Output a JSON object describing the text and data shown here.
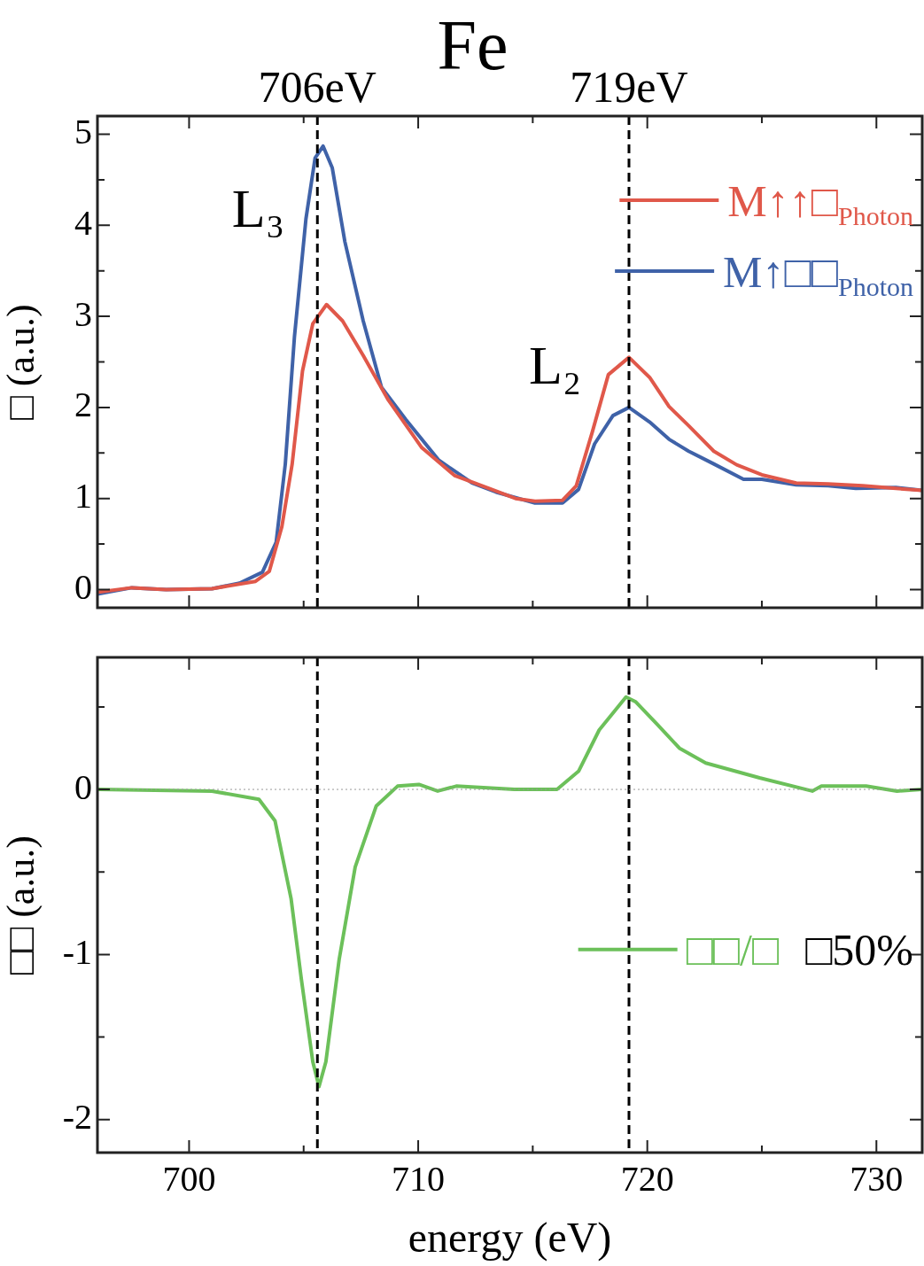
{
  "chart_data": [
    {
      "type": "line",
      "title": "Fe",
      "ylabel": "□ (a.u.)",
      "xlim": [
        696,
        732
      ],
      "xticks": [
        700,
        {
          "value": 705,
          "label": null
        },
        710,
        {
          "value": 715,
          "label": null
        },
        720,
        {
          "value": 725,
          "label": null
        },
        730
      ],
      "ylim": [
        -0.2,
        5.2
      ],
      "yticks": [
        0,
        {
          "value": 0.5,
          "label": null
        },
        1,
        {
          "value": 1.5,
          "label": null
        },
        2,
        {
          "value": 2.5,
          "label": null
        },
        3,
        {
          "value": 3.5,
          "label": null
        },
        4,
        {
          "value": 4.5,
          "label": null
        },
        5
      ],
      "tick_labels": "y",
      "legend": "top right",
      "marker": "none",
      "line_style": "solid",
      "series": [
        {
          "name": "M↑↑□$_{Photon}$",
          "color": "#e0584a",
          "x": [
            696,
            697.5,
            699,
            701,
            702.9,
            703.5,
            704.05,
            704.5,
            704.95,
            705.4,
            706.0,
            706.7,
            707.6,
            708.7,
            710.15,
            711.6,
            713.1,
            714.25,
            715.1,
            716.3,
            716.9,
            717.6,
            718.3,
            719.2,
            720.1,
            720.95,
            721.8,
            722.9,
            723.9,
            725.0,
            726.5,
            727.9,
            729.4,
            730.85,
            732
          ],
          "values": [
            -0.03,
            0.02,
            0,
            0.01,
            0.09,
            0.2,
            0.69,
            1.38,
            2.4,
            2.92,
            3.13,
            2.95,
            2.57,
            2.08,
            1.56,
            1.25,
            1.11,
            1.0,
            0.97,
            0.98,
            1.14,
            1.73,
            2.36,
            2.55,
            2.33,
            2.01,
            1.8,
            1.52,
            1.37,
            1.26,
            1.17,
            1.16,
            1.14,
            1.11,
            1.09
          ]
        },
        {
          "name": "M↑□□$_{Photon}$",
          "color": "#3f62a8",
          "x": [
            696,
            697.5,
            699,
            701,
            702.2,
            703.2,
            703.8,
            704.2,
            704.6,
            705.1,
            705.5,
            705.85,
            706.25,
            706.8,
            707.6,
            708.4,
            709.45,
            710.9,
            712.35,
            713.4,
            715.1,
            716.3,
            717.0,
            717.7,
            718.5,
            719.2,
            720.1,
            720.95,
            721.8,
            722.9,
            724.2,
            725.0,
            726.5,
            727.9,
            729.1,
            730.85,
            732
          ],
          "values": [
            -0.05,
            0.02,
            0,
            0.01,
            0.07,
            0.19,
            0.52,
            1.38,
            2.78,
            4.07,
            4.74,
            4.87,
            4.63,
            3.82,
            2.95,
            2.22,
            1.87,
            1.42,
            1.17,
            1.07,
            0.95,
            0.95,
            1.1,
            1.6,
            1.91,
            2.0,
            1.84,
            1.65,
            1.52,
            1.38,
            1.21,
            1.21,
            1.15,
            1.14,
            1.11,
            1.12,
            1.09
          ]
        }
      ],
      "ref_lines": [
        {
          "axis": "x",
          "value": 705.6,
          "label": "706eV",
          "color": "#000000",
          "line_style": "dashed"
        },
        {
          "axis": "x",
          "value": 719.2,
          "label": "719eV",
          "color": "#000000",
          "line_style": "dashed"
        }
      ],
      "annotations": [
        "L₃",
        "L₂"
      ]
    },
    {
      "type": "line",
      "xlabel": "energy (eV)",
      "ylabel": "□□ (a.u.)",
      "xlim": [
        696,
        732
      ],
      "xticks": [
        700,
        {
          "value": 705,
          "label": null
        },
        710,
        {
          "value": 715,
          "label": null
        },
        720,
        {
          "value": 725,
          "label": null
        },
        730
      ],
      "ylim": [
        -2.2,
        0.8
      ],
      "yticks": [
        -2,
        {
          "value": -1.5,
          "label": null
        },
        -1,
        {
          "value": -0.5,
          "label": null
        },
        0,
        {
          "value": 0.5,
          "label": null
        }
      ],
      "legend": "right",
      "marker": "none",
      "line_style": "solid",
      "series": [
        {
          "name": "□□/□",
          "color": "#6cc05a",
          "x": [
            696,
            701,
            703.05,
            703.75,
            704.45,
            704.9,
            705.4,
            705.67,
            705.97,
            706.55,
            707.25,
            708.17,
            709.1,
            710.03,
            710.85,
            711.66,
            714.2,
            716.06,
            717.0,
            717.9,
            719.07,
            719.5,
            720.46,
            721.4,
            722.55,
            724.9,
            727.2,
            727.6,
            729.55,
            730.9,
            732
          ],
          "values": [
            0,
            -0.01,
            -0.06,
            -0.19,
            -0.66,
            -1.15,
            -1.65,
            -1.8,
            -1.65,
            -1.03,
            -0.47,
            -0.1,
            0.02,
            0.03,
            -0.01,
            0.02,
            0,
            0,
            0.11,
            0.36,
            0.56,
            0.53,
            0.39,
            0.25,
            0.16,
            0.07,
            -0.01,
            0.02,
            0.02,
            -0.01,
            0
          ]
        }
      ],
      "ref_lines": [
        {
          "axis": "x",
          "value": 705.6,
          "color": "#000000",
          "line_style": "dashed"
        },
        {
          "axis": "x",
          "value": 719.2,
          "color": "#000000",
          "line_style": "dashed"
        },
        {
          "axis": "y",
          "value": 0,
          "color": "#999999",
          "line_style": "dotted"
        }
      ],
      "annotations": [
        "□50%"
      ]
    }
  ]
}
